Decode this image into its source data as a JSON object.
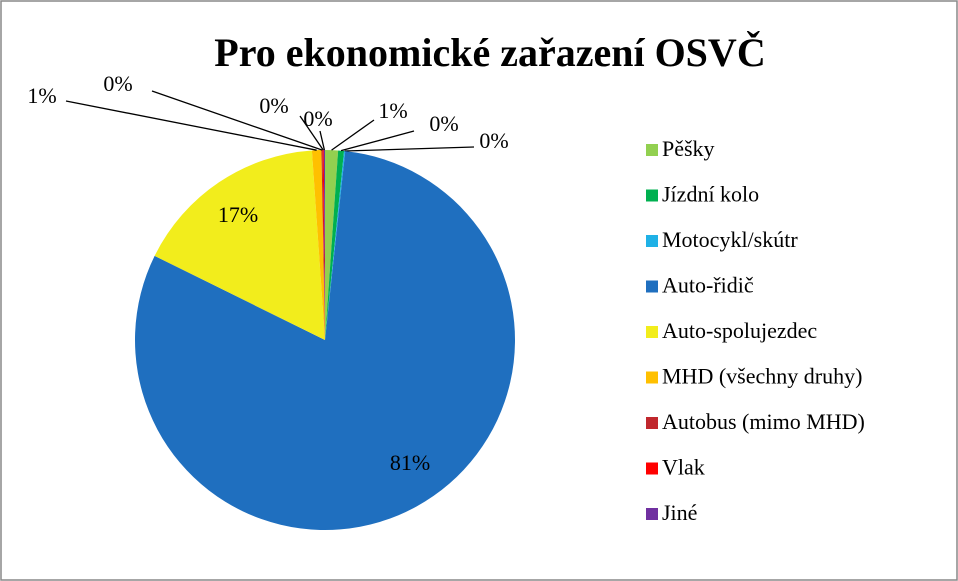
{
  "chart_data": {
    "type": "pie",
    "title": "Pro ekonomické zařazení OSVČ",
    "categories": [
      "Pěšky",
      "Jízdní kolo",
      "Motocykl/skútr",
      "Auto-řidič",
      "Auto-spolujezdec",
      "MHD (všechny druhy)",
      "Autobus (mimo MHD)",
      "Vlak",
      "Jiné"
    ],
    "values": [
      1.1,
      0.5,
      0.1,
      80.6,
      16.6,
      0.8,
      0.1,
      0.1,
      0.1
    ],
    "value_labels": [
      "1%",
      "0%",
      "0%",
      "81%",
      "17%",
      "1%",
      "0%",
      "0%",
      "0%"
    ],
    "colors": [
      "#92d050",
      "#00b050",
      "#1fb1e6",
      "#1f6fbf",
      "#f2ed1c",
      "#ffc000",
      "#c0272d",
      "#ff0000",
      "#7030a0"
    ],
    "legend": "right"
  }
}
